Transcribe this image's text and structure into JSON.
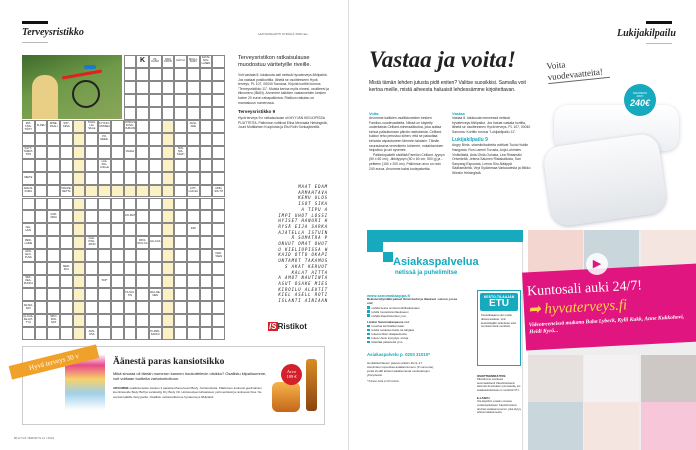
{
  "left_page": {
    "section_title": "Terveysristikko",
    "byline": "LAATIJANA ANTTI SYRJÄLÄ TASO ●●○",
    "crossword": {
      "top_clues": [
        "K",
        "PII-KANO",
        "AINA KAVIN",
        "HÄYLÄ",
        "MULLI-SURU",
        "KAKSI-NOL-LANEN"
      ],
      "clues": [
        "SYRE-MIT-TÄIS-TÖITY",
        "KI-PEU",
        "MINE-RAALI",
        "SOT-KEVA",
        "TUHO-LAI-SILLE",
        "KYYKKY-TANSSEJA",
        "JOSKUS KOVA-KOURAISIA",
        "AUGI-ANE",
        "PO-NEER-",
        "KÄYT-TÄMÄT-TÖN",
        "VIHAIA",
        "TEN-NIS-TÄHTI",
        "LAA-PAL-LOILLE",
        "MIETE",
        "AVAUS-KORA",
        "TAM-PE-RETTA",
        "KITT-LÄS-SÄ",
        "ADIN-SIS-TÖ",
        "KAR-DINA",
        "VOI-MAT",
        "ISLI-HUN",
        "EMI",
        "PENI-LAINE",
        "VÄLI-POH-JAKIN",
        "PATA-RUO-KA",
        "JAL-KAA",
        "AKN-ELO-KUVA",
        "KER-TAEN",
        "MER-KKA",
        "SEK-KEA-RUOKA",
        "\"DIP\"",
        "TA-SOI-TIN",
        "AKA-NE-NEN",
        "AR-MA-DAT",
        "AL-KAA-KE-HIT-TYÄ",
        "SIKO-PAN-NOT",
        "AUN-OSA",
        "PI-PAR-KAKKU"
      ]
    },
    "info": {
      "heading": "Terveysristikon ratkaisulause muodostuu väritetyille riveille.",
      "body": "Voit vastata 8. lokakuuta asti netissä hyvaterveys.fi/kilpailut. Jos vastaat postikortilla, lähetä se osoitteeseen Hyvä terveys, PL 107, 00040 Sanoma. Kirjoita korttiin tunnus \"Terveysristikko 11\". Muista kertoa myös nimesi, osoitteesi ja tilinumero (IBAN). Arvomme kaikkien vastanneiden kesken kolme 20 euron rahapalkintoa. Ristikon ratkaisu on marraskuun numerossa.",
      "prev_heading": "Terveysristikko 9",
      "prev_body": "Hyvä terveys 9:n ratkaisulause oli MYYJÄN KIELIOPISSA PUUTTEITA. Palkinnon voittivat Elina Mervaala Helsingistä, Jouni Muttilainen Kuopiosta ja Elsi Roth Sonkajärveltä."
    },
    "solution_rows": [
      "MAAT EDAM",
      "ARMAHTAVA",
      "KEMU ULOS",
      "ISOT SIKA",
      "A TIPU A",
      "IMPI UHOT LOSSI",
      "HYISET HANURI H",
      "RYSÄ EIJA SARKA",
      "AJATELLA ISTUIN",
      "Ä SUMATRA P",
      "ONUUT OMAT OHUT",
      "U KIELIOPISSA W",
      "KAID OTTO OKAPI",
      "UNTAMOT TAKAMUS",
      "S AKAT KERUUT",
      "KALAT AITTA",
      "A AMOT NAUTINTA",
      "ASUT OSAKE MIES",
      "KIROILU ALEUTIT",
      "KIEL ASELL ROTI",
      "ISLANTI AINIAAN"
    ],
    "logo_text": "ISRistikot",
    "vote_banner": {
      "ribbon": "Hyvä terveys 30 v",
      "magazine": "Hyvä terveys",
      "heading": "Äänestä paras kansiotsikko",
      "intro": "Mikä sinusta oli tämän numeron kannen houkuttelevin otsikko? Osallistu kilpailuumme, voit voittaan tuotteita vartalonhoitoon.",
      "lead": "ARVOMME",
      "body": " osallistuneiden kesken 3 paketita Moroccanoil Body -hoitotuotteita. Palkintoon kuuluvat geelimäinen kuorintavoide Body Buff ja vartaloöljy Dry Body Oil. Hoitotuotteet kirkastavat, pehmentävät ja ravitsevat ihoa. Ne sopivat kaikille ihotyypeille. Osallistu nettisivuillamme hyvaterveys.fi/kilpailut",
      "badge": [
        "Arvo",
        "109 €"
      ]
    },
    "footer": "80 HYVÄ TERVEYS 11 / 2021"
  },
  "right_page": {
    "section_title": "Lukijakilpailu",
    "title": "Vastaa ja voita!",
    "intro": "Mistä tämän lehden jutusta pidit eniten? Valitse suosikkisi. Samalla voit kertoa meille, mistä aiheesta haluaisit lehdessämme kirjoitettavan.",
    "voita": {
      "heading": "Voita",
      "body": "Arvomme kaikkien osallistuneiden kesken Familon-vuodevaatteita. Niissä on käytetty uudentaista Celliant-mineraalikuitua, joka auttaa kehoa palautumaan päivän rasituksista. Celliant-kuidun teho perustuu siihen, että se palauttaa kehosta vapautuneen lämmön takaisin. Tämän seurauksena verenkierto kohenee, nukahtaminen helpottuu ja uni syvenee.",
      "body2": "Palkintopaketti sisältää Familon Celliant -tyynyn (50 x 60 cm), -tikkityynyn (50 x 60 cm, 500 g) ja -peitteen (150 x 200 cm). Palkinnon arvo on noin 240 euroa. Arvomme kaksi tuotepakettia."
    },
    "vastaa": {
      "heading": "Vastaa",
      "body": "Vastaa 8. lokakuuta mennessä netissä hyvaterveys.fi/kilpailut. Jos haluat vastata kortilla, lähetä se osoitteeseen Hyvä terveys, PL 107, 00040 Sanoma. Korttiin tunnus \"Lukijakilpailu 11\"."
    },
    "winners": {
      "heading": "Lukijakilpailu 9",
      "body": "Angry Birds -vitamiinituotteita voittivat Tuula Huldin Hangosta, Ron Lammi Turusta, Anja Lohimies Vinkkilästä, Asta Ohila Oulusta, Lea Rintamäki Orivedeltä, Jelena Salonen Ristakallosta, Sari Sanyang Espoosta, Leena Siro-Nääppä Sääksmäeltä, Virpi Sydänmaa Varkaudesta ja Mikko Wiesiin Helsingistä."
    },
    "prize": {
      "caption": "Voita vuodevaatteita!",
      "badge_label": "PALKINNON ARVO",
      "badge_value": "240€"
    },
    "service_ad": {
      "title": "Asiakaspalvelua",
      "subtitle": "netissä ja puhelimitse",
      "url": "www.sanomakauppa.fi",
      "reg_text": "Rekisteröitymällä pääset Omat tiedot ja tilaukset -osioon, jossa voit:",
      "reg_items": [
        "nähdä tietoa omista lehtitilauksistasi",
        "tehdä muutoksia tilaukseesi",
        "nähdä tilaushistoriasi yms."
      ],
      "shop_text": "Lisäksi Sanomakaupassa voi:",
      "shop_items": [
        "tutustua lehtivalikoimaan",
        "tehdä ostoksia itselle tai lahjaksi",
        "lukea lehtien tilaajaeduista",
        "lukea Usein kysyttyä -sivuja",
        "lähettää palautetta yms."
      ],
      "phone": "Asiakaspalvelu p. 0203 31010*",
      "phone_text": "Henkilökohtainen palvelu arkisin klo 9–17. Asioinitasi nopeuttaa asiakasnumero (9 numeroa), jonka löydät lehtesi takakannesta osoitetietojen yhteydestä.",
      "footnote": "* Puhelun hinta on 8,8 snt/min.",
      "etu_top": "KESTO-TILAAJAN",
      "etu": "ETU",
      "etu_text": "Kestotilaajana olet meille tärkeä asiakas. Voin kestotilaajille tarkoitetut edut tunnistat tästä merkistä.",
      "address_heading": "OSOITTEENMUUTOS:",
      "address_text": "Päivitämme osoitteesi automaattisesti Väestörekisterin tekemän ilmoituksen perusteella, jos asiakastiedoissasi on merkintä VTJ.",
      "elasku_heading": "E-LASKU:",
      "elasku_text": "Ota käyttöön e-lasku omassa verkkopankissasi. Käyttöönottoon tarvitset asiakasnumeron, joka löytyy lehtesi takakannesta."
    },
    "gym_ad": {
      "headline": "Kuntosali auki 24/7!",
      "site": "hyvaterveys.fi",
      "text": "Videotreeneissä mukana Baba Lybeck, Kylli Kukk, Anne Kukkohovi, Heidi Kyrö..."
    }
  },
  "colors": {
    "teal": "#17a9bd",
    "pink": "#e0157f",
    "orange": "#f0a12a",
    "yellow_highlight": "#fbf1c4"
  }
}
